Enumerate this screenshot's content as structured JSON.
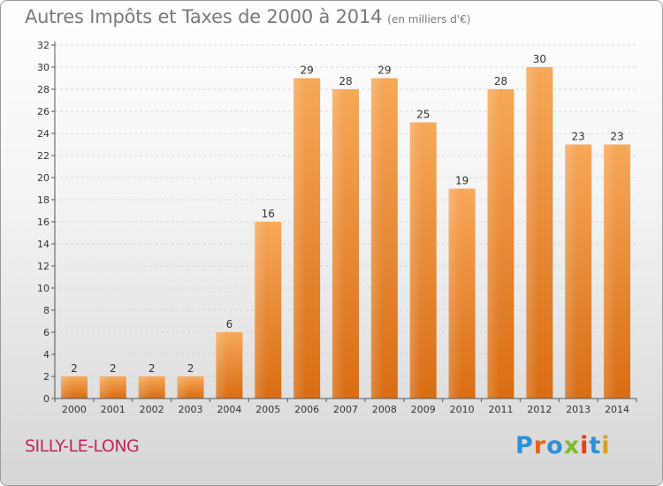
{
  "chart_data": {
    "type": "bar",
    "title": "Autres Impôts et Taxes de 2000 à 2014",
    "subtitle": "(en milliers d'€)",
    "xlabel": "",
    "ylabel": "",
    "categories": [
      "2000",
      "2001",
      "2002",
      "2003",
      "2004",
      "2005",
      "2006",
      "2007",
      "2008",
      "2009",
      "2010",
      "2011",
      "2012",
      "2013",
      "2014"
    ],
    "values": [
      2,
      2,
      2,
      2,
      6,
      16,
      29,
      28,
      29,
      25,
      19,
      28,
      30,
      23,
      23
    ],
    "ylim": [
      0,
      32
    ],
    "yticks": [
      0,
      2,
      4,
      6,
      8,
      10,
      12,
      14,
      16,
      18,
      20,
      22,
      24,
      26,
      28,
      30,
      32
    ],
    "grid": true,
    "bar_color": "#f08a2c"
  },
  "footer": {
    "location": "SILLY-LE-LONG",
    "brand": "Proxiti"
  },
  "colors": {
    "location_text": "#c2265a",
    "brand_letters": [
      "#2f8fd8",
      "#e2661f",
      "#2f8fd8",
      "#7dbb2d",
      "#e83c1b",
      "#2f8fd8",
      "#d8a11a"
    ]
  }
}
